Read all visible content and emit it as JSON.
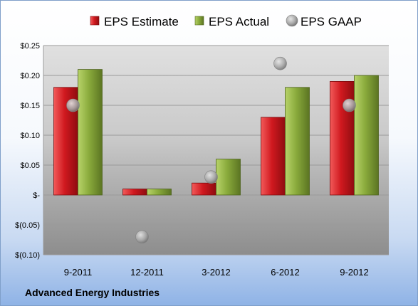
{
  "footer": {
    "company": "Advanced Energy Industries"
  },
  "chart_data": {
    "type": "bar",
    "categories": [
      "9-2011",
      "12-2011",
      "3-2012",
      "6-2012",
      "9-2012"
    ],
    "series": [
      {
        "name": "EPS Estimate",
        "kind": "bar",
        "color": "#d0191f",
        "values": [
          0.18,
          0.01,
          0.02,
          0.13,
          0.19
        ]
      },
      {
        "name": "EPS Actual",
        "kind": "bar",
        "color": "#8aab3c",
        "values": [
          0.21,
          0.01,
          0.06,
          0.18,
          0.2
        ]
      },
      {
        "name": "EPS GAAP",
        "kind": "marker",
        "color": "#a9a9a9",
        "values": [
          0.15,
          -0.07,
          0.03,
          0.22,
          0.15
        ]
      }
    ],
    "y_ticks": [
      {
        "value": 0.25,
        "label": "$0.25"
      },
      {
        "value": 0.2,
        "label": "$0.20"
      },
      {
        "value": 0.15,
        "label": "$0.15"
      },
      {
        "value": 0.1,
        "label": "$0.10"
      },
      {
        "value": 0.05,
        "label": "$0.05"
      },
      {
        "value": 0.0,
        "label": "$-"
      },
      {
        "value": -0.05,
        "label": "$(0.05)"
      },
      {
        "value": -0.1,
        "label": "$(0.10)"
      }
    ],
    "ylim": [
      -0.1,
      0.25
    ],
    "legend_position": "top-center",
    "grid": true
  }
}
